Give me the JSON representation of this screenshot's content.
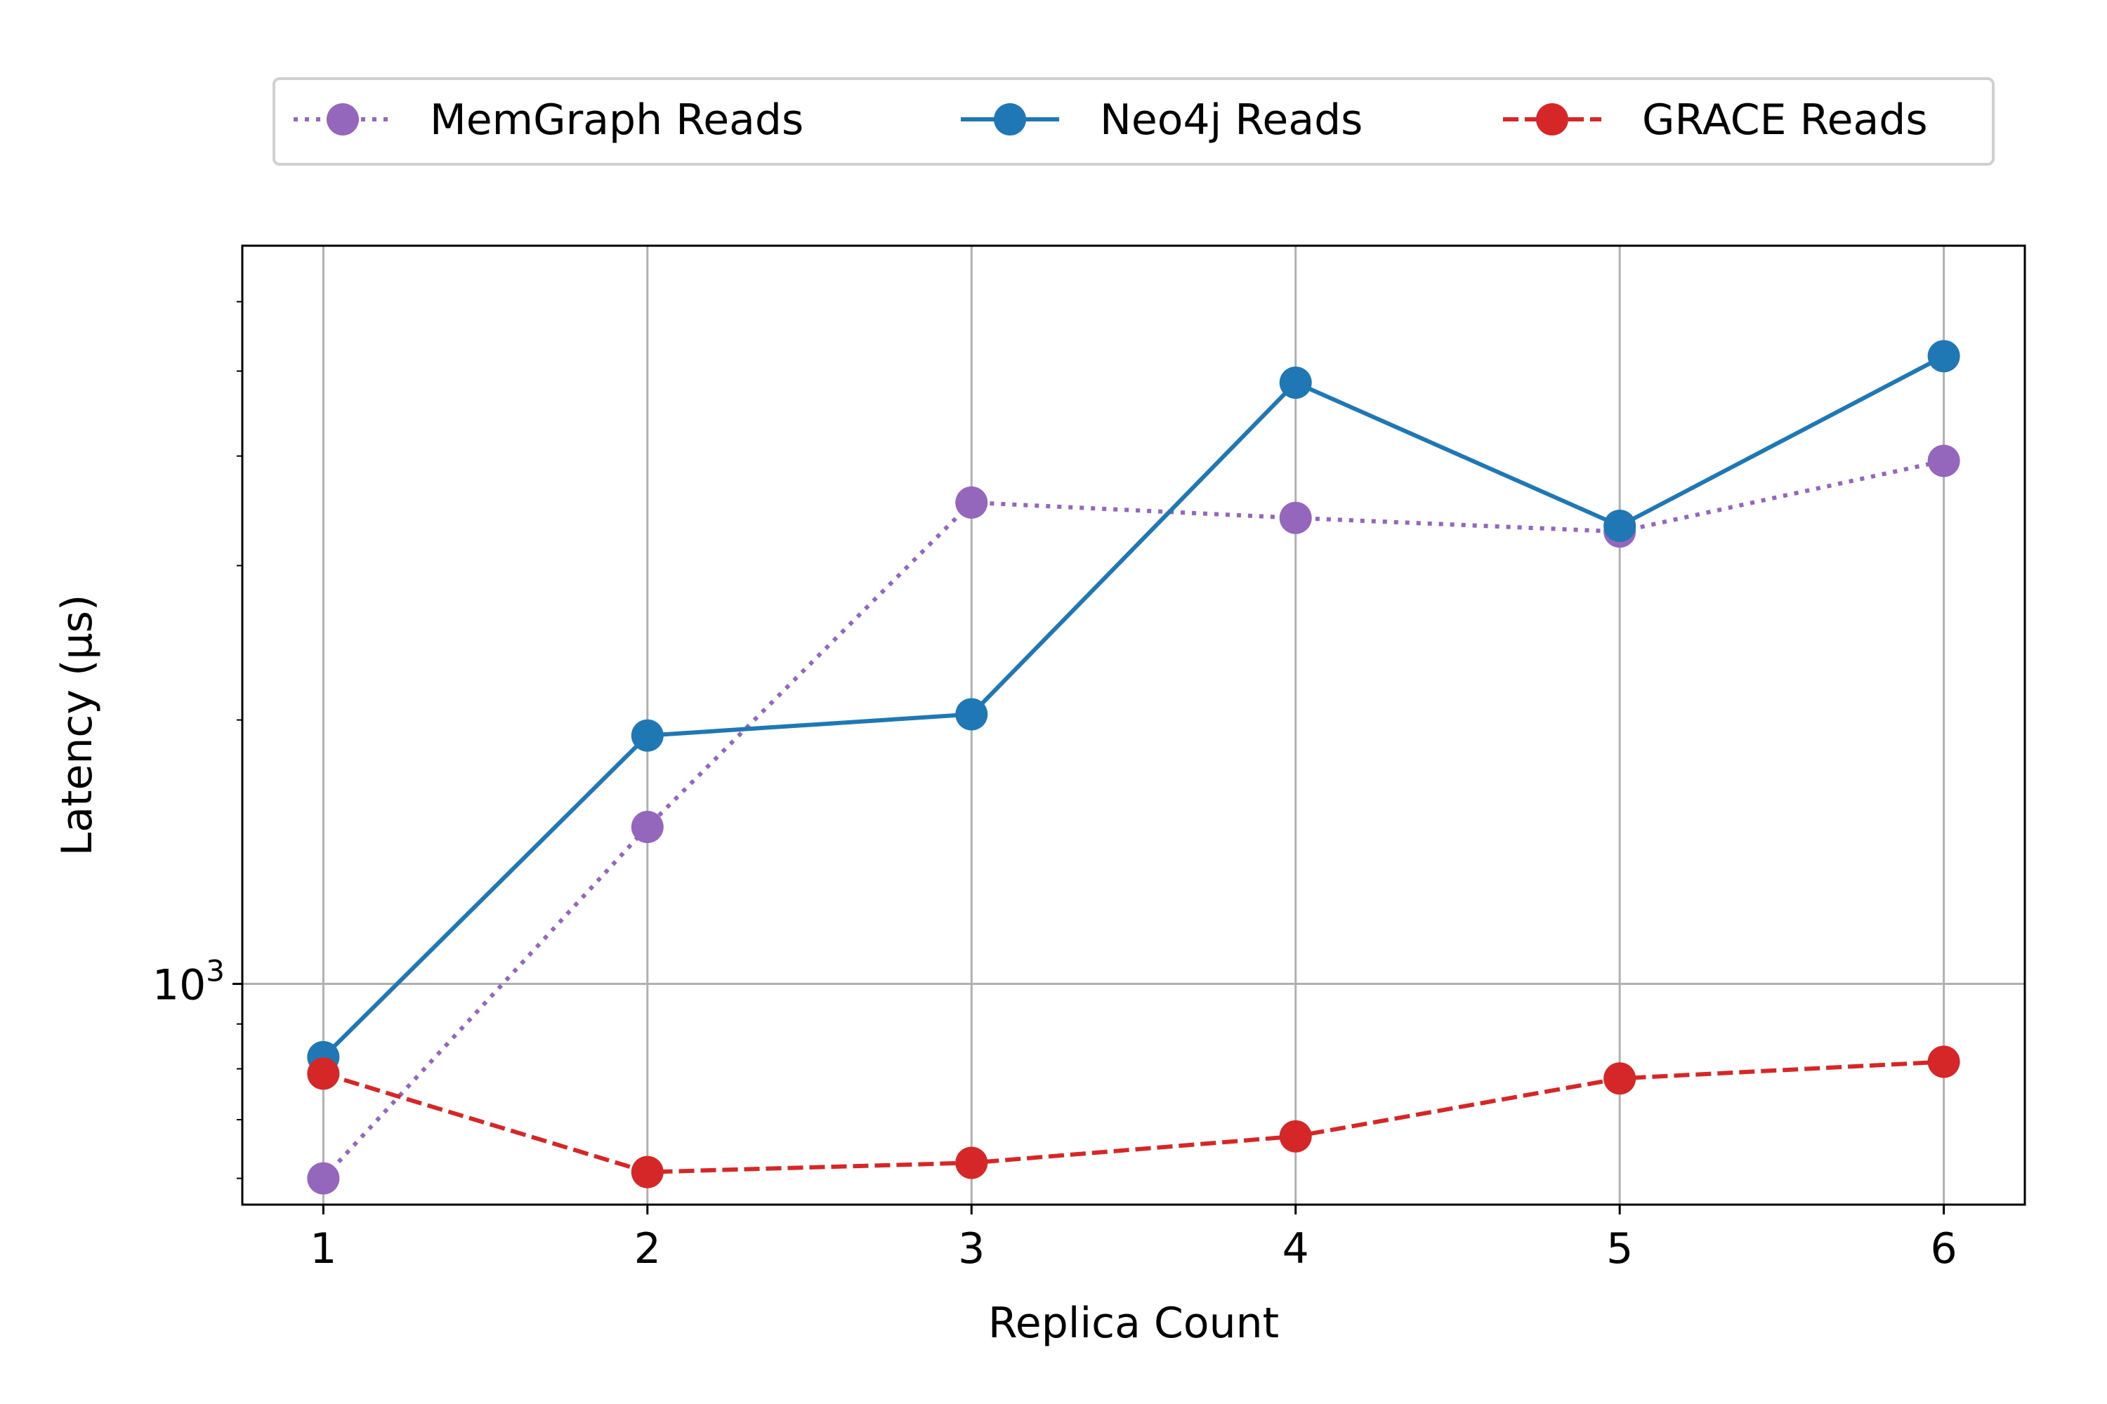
{
  "chart_data": {
    "type": "line",
    "xlabel": "Replica Count",
    "ylabel": "Latency (µs)",
    "yscale": "log",
    "grid": true,
    "legend_position": "top-center",
    "x": [
      1,
      2,
      3,
      4,
      5,
      6
    ],
    "xlim": [
      0.75,
      6.25
    ],
    "ylim": [
      560,
      6950
    ],
    "xticks": [
      "1",
      "2",
      "3",
      "4",
      "5",
      "6"
    ],
    "yticks": [
      {
        "value": 1000,
        "base": "10",
        "exp": "3"
      }
    ],
    "series": [
      {
        "name": "MemGraph Reads",
        "values": [
          600,
          1510,
          3540,
          3400,
          3280,
          3950
        ],
        "color": "#9467bd",
        "line_style": "dotted",
        "marker": "circle"
      },
      {
        "name": "Neo4j Reads",
        "values": [
          825,
          1920,
          2030,
          4850,
          3330,
          5200
        ],
        "color": "#1f77b4",
        "line_style": "solid",
        "marker": "circle"
      },
      {
        "name": "GRACE Reads",
        "values": [
          790,
          610,
          625,
          670,
          780,
          815
        ],
        "color": "#d62728",
        "line_style": "dashed",
        "marker": "circle"
      }
    ]
  }
}
